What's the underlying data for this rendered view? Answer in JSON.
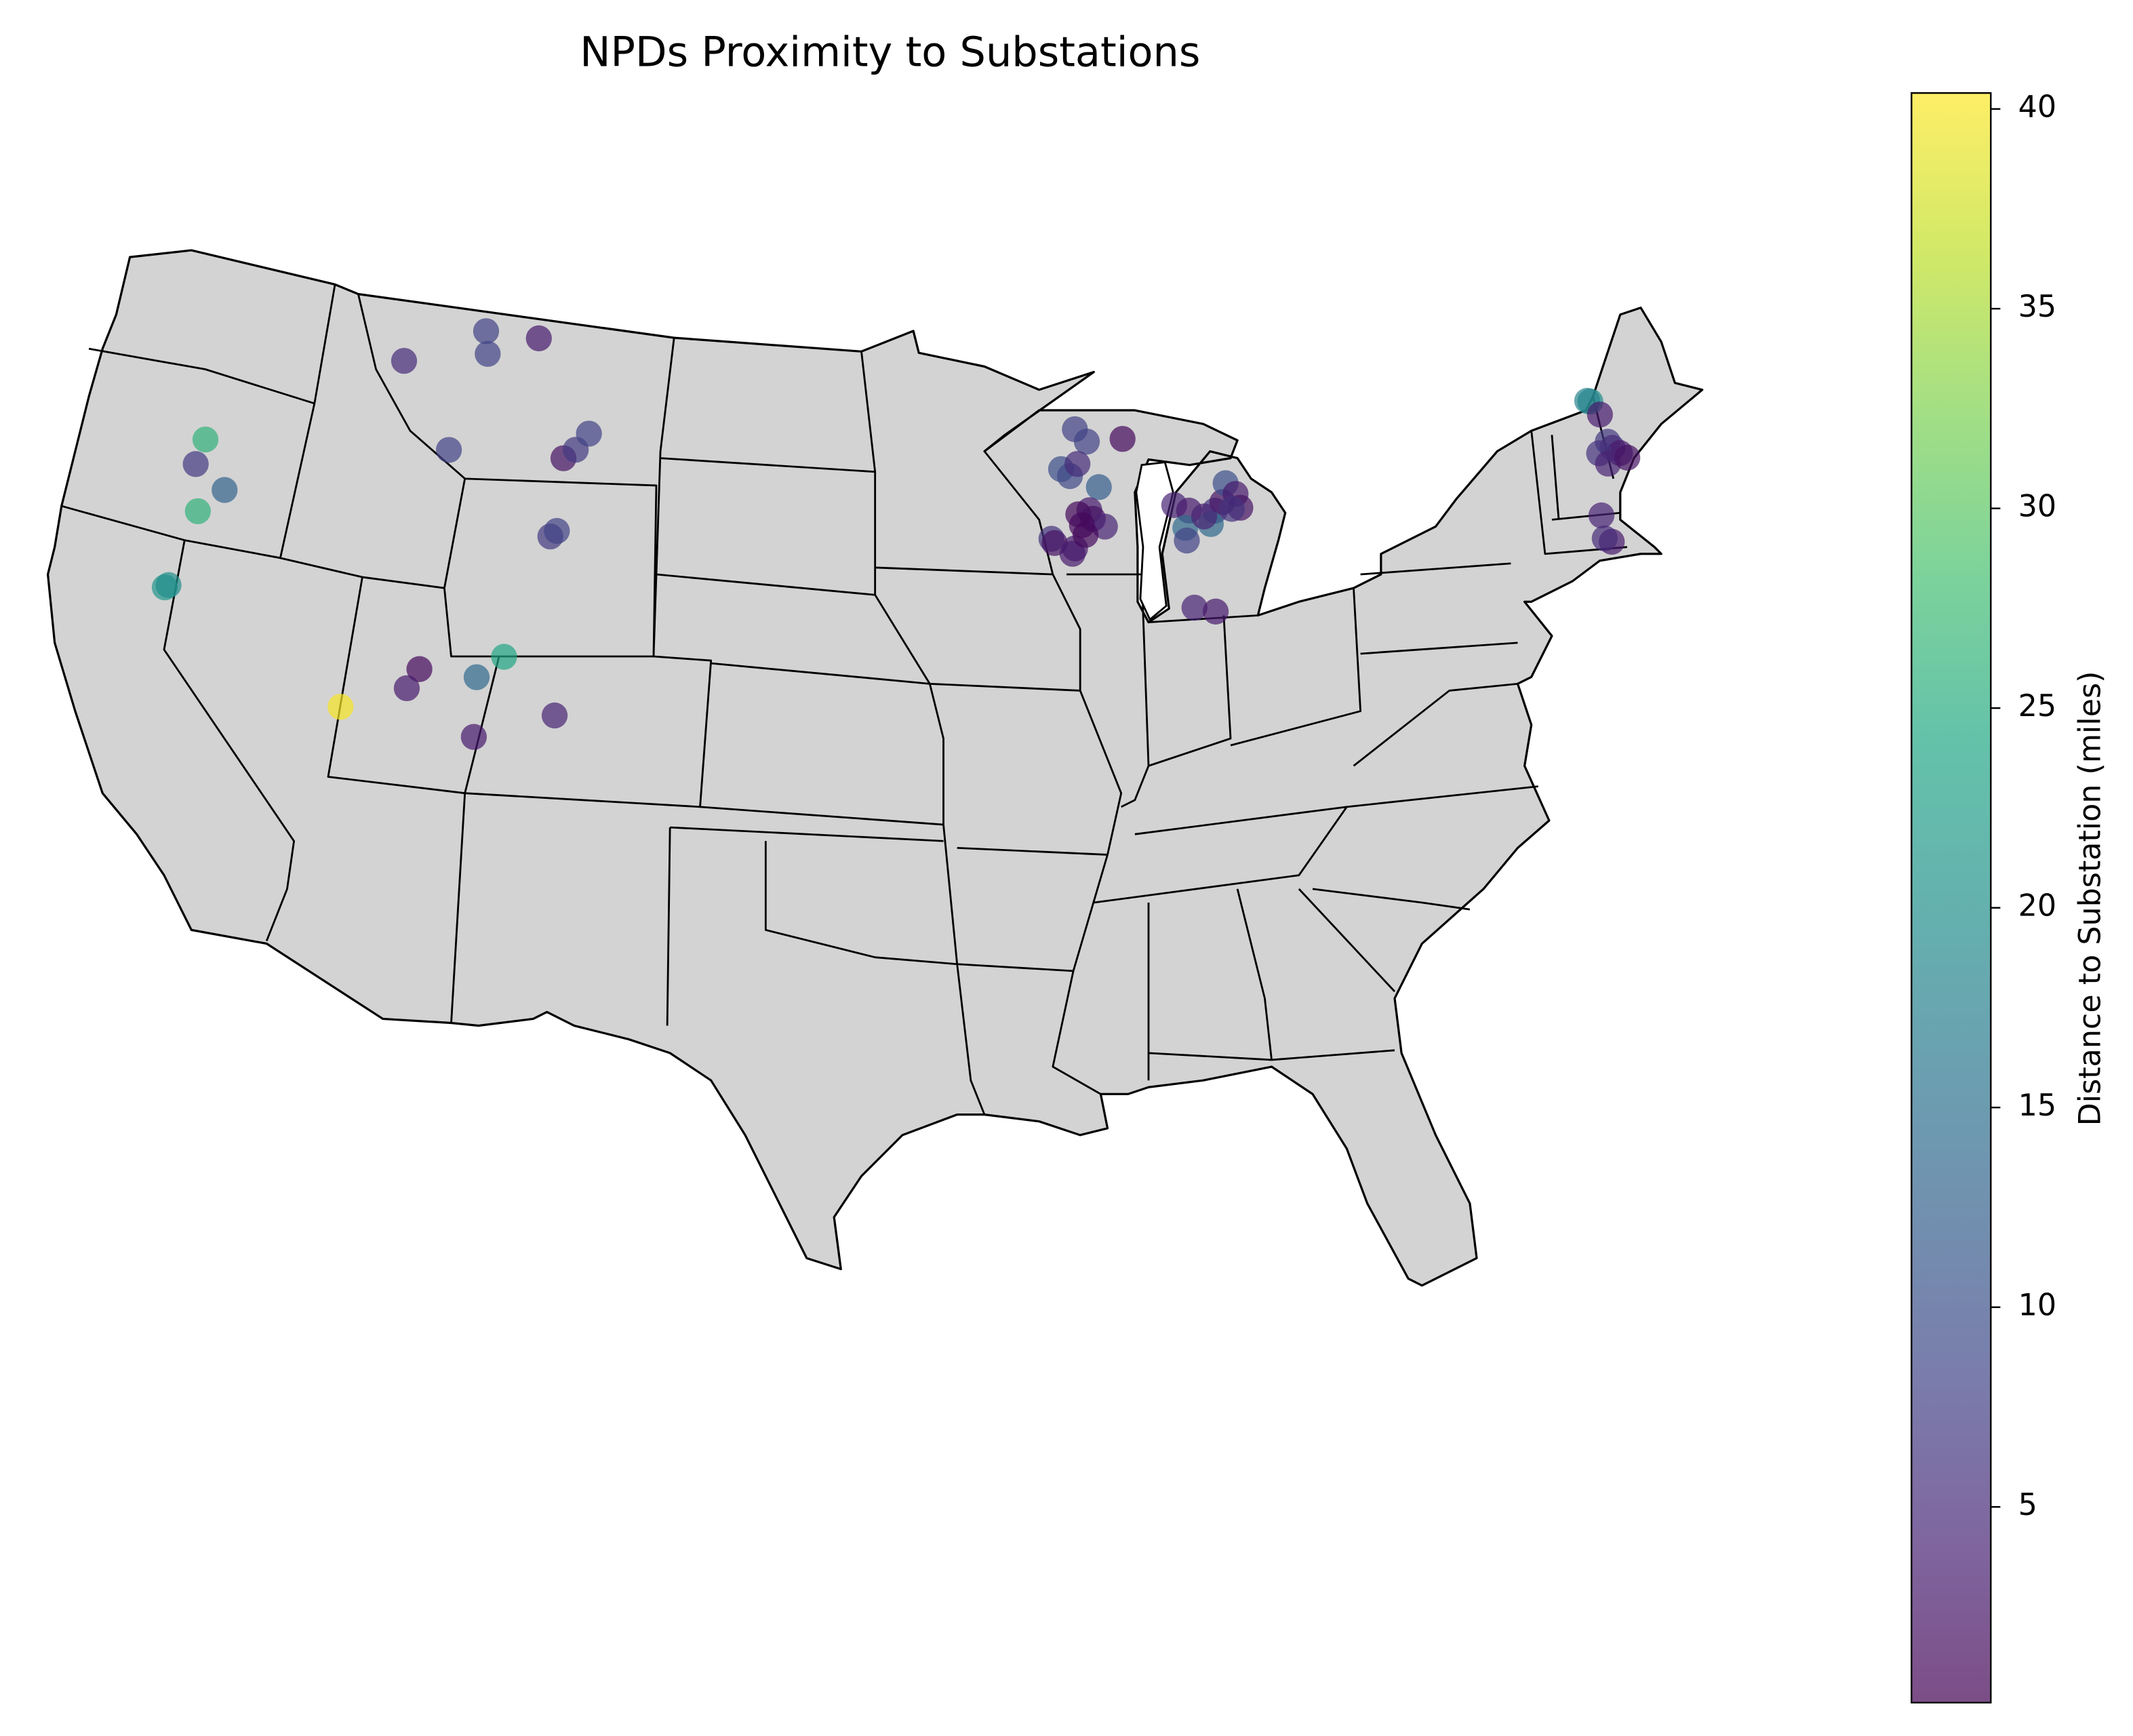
{
  "chart_data": {
    "type": "map-scatter",
    "title": "NPDs Proximity to Substations",
    "x": [
      -114.1,
      -111.3,
      -111.1,
      -109.3,
      -111.9,
      -107.8,
      -107.4,
      -107.0,
      -107.9,
      -107.7,
      -120.4,
      -120.5,
      -119.3,
      -120.0,
      -120.4,
      -120.3,
      -111.6,
      -111.9,
      -113.9,
      -109.7,
      -108.9,
      -109.5,
      -107.0,
      -89.3,
      -88.9,
      -87.6,
      -89.9,
      -89.6,
      -89.3,
      -88.6,
      -89.0,
      -89.4,
      -88.9,
      -88.5,
      -90.4,
      -90.3,
      -89.6,
      -89.7,
      -89.2,
      -89.3,
      -86.0,
      -85.5,
      -84.6,
      -84.3,
      -84.1,
      -83.8,
      -83.7,
      -85.7,
      -85.7,
      -84.8,
      -85.0,
      -84.0,
      -85.7,
      -85.0,
      -70.8,
      -70.9,
      -70.6,
      -70.6,
      -70.5,
      -70.3,
      -71.0,
      -70.8,
      -70.1,
      -71.5,
      -71.4,
      -71.6
    ],
    "y": [
      47.45,
      48.55,
      48.0,
      48.58,
      45.47,
      45.7,
      45.95,
      46.39,
      43.71,
      43.87,
      44.38,
      43.72,
      43.28,
      42.59,
      40.52,
      40.6,
      39.91,
      39.38,
      38.61,
      39.94,
      40.55,
      38.44,
      39.25,
      46.79,
      46.46,
      46.45,
      45.82,
      45.63,
      45.92,
      45.3,
      44.74,
      44.66,
      44.52,
      44.3,
      44.09,
      43.98,
      43.81,
      43.68,
      44.13,
      44.38,
      44.67,
      44.49,
      44.41,
      44.6,
      45.06,
      44.76,
      44.4,
      44.07,
      43.75,
      44.09,
      44.3,
      44.4,
      42.05,
      41.89,
      45.21,
      45.25,
      44.83,
      44.12,
      43.94,
      43.76,
      43.9,
      43.59,
      43.6,
      42.38,
      41.67,
      41.8
    ],
    "values": [
      5,
      8,
      8,
      3,
      8,
      2,
      7,
      8,
      7,
      8,
      26,
      7,
      13,
      26,
      21,
      20,
      1,
      3,
      40,
      14,
      24,
      3,
      4,
      8,
      8,
      1,
      10,
      9,
      5,
      12,
      3,
      1,
      2,
      4,
      6,
      2,
      3,
      3,
      1,
      1,
      4,
      3,
      6,
      2,
      10,
      3,
      2,
      14,
      8,
      14,
      4,
      6,
      4,
      3,
      20,
      18,
      3,
      7,
      5,
      3,
      6,
      4,
      2,
      4,
      3,
      5
    ],
    "colormap": "viridis",
    "colorbar": {
      "label": "Distance to Substation (miles)",
      "lim": [
        0.1,
        40.4
      ],
      "ticks": [
        5,
        10,
        15,
        20,
        25,
        30,
        35,
        40
      ]
    }
  }
}
